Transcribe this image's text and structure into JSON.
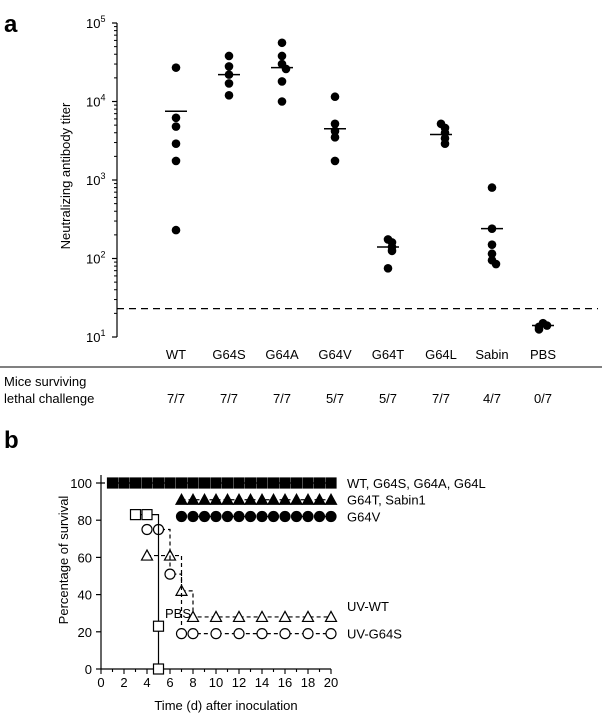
{
  "panel_a": {
    "letter": "a",
    "row_label_line1": "Mice surviving",
    "row_label_line2": "lethal challenge",
    "chart_data": {
      "type": "scatter",
      "ylabel": "Neutralizing antibody titer",
      "yscale": "log",
      "ylim": [
        10,
        100000
      ],
      "yticks": [
        {
          "value": 10,
          "base": "10",
          "exp": "1"
        },
        {
          "value": 100,
          "base": "10",
          "exp": "2"
        },
        {
          "value": 1000,
          "base": "10",
          "exp": "3"
        },
        {
          "value": 10000,
          "base": "10",
          "exp": "4"
        },
        {
          "value": 100000,
          "base": "10",
          "exp": "5"
        }
      ],
      "threshold": 23,
      "categories": [
        "WT",
        "G64S",
        "G64A",
        "G64V",
        "G64T",
        "G64L",
        "Sabin",
        "PBS"
      ],
      "points": [
        [
          27000,
          6200,
          4800,
          2900,
          1750,
          230
        ],
        [
          38000,
          28000,
          22000,
          17000,
          12000
        ],
        [
          56000,
          38000,
          30000,
          26000,
          18000,
          10000
        ],
        [
          11500,
          5200,
          4200,
          3500,
          1750
        ],
        [
          175,
          160,
          140,
          125,
          75
        ],
        [
          5200,
          4600,
          4000,
          3400,
          2900
        ],
        [
          800,
          240,
          150,
          115,
          95,
          85
        ],
        [
          15,
          14,
          13.5,
          12.5
        ]
      ],
      "means": [
        7500,
        22000,
        27000,
        4500,
        140,
        3800,
        240,
        14
      ],
      "survival": [
        "7/7",
        "7/7",
        "7/7",
        "5/7",
        "5/7",
        "7/7",
        "4/7",
        "0/7"
      ]
    }
  },
  "panel_b": {
    "letter": "b",
    "pbs_label": "PBS",
    "chart_data": {
      "type": "line",
      "xlabel": "Time (d) after inoculation",
      "ylabel": "Percentage of survival",
      "xlim": [
        0,
        20
      ],
      "ylim": [
        0,
        100
      ],
      "xticks": [
        0,
        2,
        4,
        6,
        8,
        10,
        12,
        14,
        16,
        18,
        20
      ],
      "yticks": [
        0,
        20,
        40,
        60,
        80,
        100
      ],
      "series": [
        {
          "name": "WT, G64S, G64A, G64L",
          "marker": "square",
          "filled": true,
          "dashed": true,
          "x": [
            1,
            2,
            3,
            4,
            5,
            6,
            7,
            8,
            9,
            10,
            11,
            12,
            13,
            14,
            15,
            16,
            17,
            18,
            19,
            20
          ],
          "y": [
            100,
            100,
            100,
            100,
            100,
            100,
            100,
            100,
            100,
            100,
            100,
            100,
            100,
            100,
            100,
            100,
            100,
            100,
            100,
            100
          ]
        },
        {
          "name": "G64T, Sabin1",
          "marker": "triangle",
          "filled": true,
          "dashed": true,
          "x": [
            7,
            8,
            9,
            10,
            11,
            12,
            13,
            14,
            15,
            16,
            17,
            18,
            19,
            20
          ],
          "y": [
            91,
            91,
            91,
            91,
            91,
            91,
            91,
            91,
            91,
            91,
            91,
            91,
            91,
            91
          ]
        },
        {
          "name": "G64V",
          "marker": "circle",
          "filled": true,
          "dashed": true,
          "x": [
            7,
            8,
            9,
            10,
            11,
            12,
            13,
            14,
            15,
            16,
            17,
            18,
            19,
            20
          ],
          "y": [
            82,
            82,
            82,
            82,
            82,
            82,
            82,
            82,
            82,
            82,
            82,
            82,
            82,
            82
          ]
        },
        {
          "name": "UV-WT",
          "marker": "triangle",
          "filled": false,
          "dashed": true,
          "x": [
            4,
            6,
            7,
            8,
            10,
            12,
            14,
            16,
            18,
            20
          ],
          "y": [
            61,
            61,
            42,
            28,
            28,
            28,
            28,
            28,
            28,
            28
          ]
        },
        {
          "name": "UV-G64S",
          "marker": "circle",
          "filled": false,
          "dashed": true,
          "x": [
            4,
            5,
            6,
            7,
            8,
            10,
            12,
            14,
            16,
            18,
            20
          ],
          "y": [
            75,
            75,
            51,
            19,
            19,
            19,
            19,
            19,
            19,
            19,
            19
          ]
        },
        {
          "name": "PBS",
          "marker": "square",
          "filled": false,
          "dashed": false,
          "x": [
            3,
            4,
            5
          ],
          "y": [
            83,
            83,
            23
          ]
        }
      ],
      "legend_labels": [
        "WT, G64S, G64A, G64L",
        "G64T, Sabin1",
        "G64V",
        "UV-WT",
        "UV-G64S"
      ]
    }
  }
}
